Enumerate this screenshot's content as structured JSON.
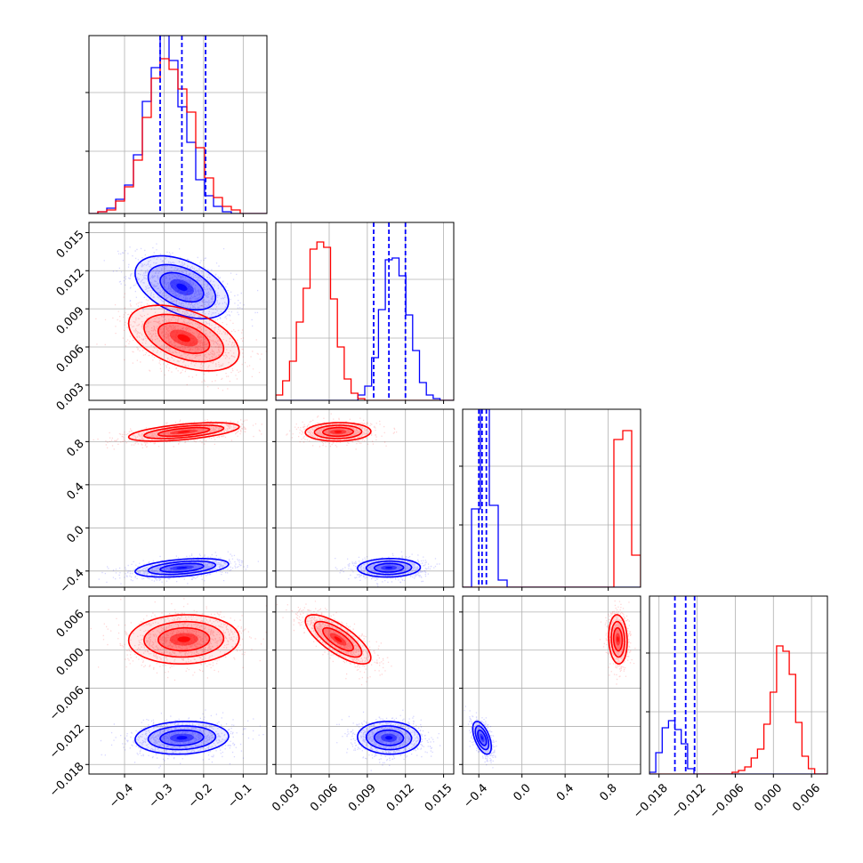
{
  "chart_data": {
    "type": "corner",
    "series": [
      {
        "name": "",
        "color": "#0000ff"
      },
      {
        "name": "",
        "color": "#ff0000"
      }
    ],
    "params": [
      {
        "range": [
          -0.49,
          -0.04
        ],
        "ticks": [
          -0.4,
          -0.3,
          -0.2,
          -0.1
        ],
        "tick_labels": [
          "−0.4",
          "−0.3",
          "−0.2",
          "−0.1"
        ]
      },
      {
        "range": [
          0.0018,
          0.0158
        ],
        "ticks": [
          0.003,
          0.006,
          0.009,
          0.012,
          0.015
        ],
        "tick_labels": [
          "0.003",
          "0.006",
          "0.009",
          "0.012",
          "0.015"
        ]
      },
      {
        "range": [
          -0.55,
          1.1
        ],
        "ticks": [
          -0.4,
          0.0,
          0.4,
          0.8
        ],
        "tick_labels": [
          "−0.4",
          "0.0",
          "0.4",
          "0.8"
        ]
      },
      {
        "range": [
          -0.0195,
          0.0085
        ],
        "ticks": [
          -0.018,
          -0.012,
          -0.006,
          0.0,
          0.006
        ],
        "tick_labels": [
          "−0.018",
          "−0.012",
          "−0.006",
          "0.000",
          "0.006"
        ]
      }
    ],
    "diag_hist": [
      {
        "bins": [
          -0.49,
          -0.04,
          20
        ],
        "blue": [
          0,
          1,
          3,
          8,
          16,
          33,
          63,
          82,
          100,
          86,
          60,
          40,
          19,
          10,
          4,
          1,
          0,
          0,
          0,
          0
        ],
        "red": [
          0,
          1,
          2,
          7,
          15,
          30,
          54,
          76,
          87,
          81,
          70,
          57,
          37,
          20,
          9,
          4,
          2,
          0,
          0,
          0
        ],
        "quantiles_blue": [
          -0.31,
          -0.255,
          -0.195
        ]
      },
      {
        "bins": [
          0.0018,
          0.0158,
          26
        ],
        "blue": [
          0,
          0,
          0,
          0,
          0,
          0,
          0,
          0,
          0,
          0,
          0,
          0,
          3,
          8,
          24,
          51,
          79,
          80,
          70,
          48,
          28,
          10,
          3,
          1,
          0,
          0
        ],
        "red": [
          3,
          11,
          22,
          44,
          63,
          85,
          89,
          86,
          57,
          30,
          12,
          4,
          1,
          0,
          0,
          0,
          0,
          0,
          0,
          0,
          0,
          0,
          0,
          0,
          0,
          0
        ],
        "quantiles_blue": [
          0.0095,
          0.0107,
          0.012
        ]
      },
      {
        "bins": [
          -0.55,
          1.1,
          20
        ],
        "blue": [
          0,
          44,
          100,
          46,
          4,
          0,
          0,
          0,
          0,
          0,
          0,
          0,
          0,
          0,
          0,
          0,
          0,
          0,
          0,
          0
        ],
        "red": [
          0,
          0,
          0,
          0,
          0,
          0,
          0,
          0,
          0,
          0,
          0,
          0,
          0,
          0,
          0,
          0,
          0,
          83,
          88,
          18
        ],
        "quantiles_blue": [
          -0.4,
          -0.37,
          -0.33
        ]
      },
      {
        "bins": [
          -0.0195,
          0.0085,
          28
        ],
        "blue": [
          1,
          12,
          26,
          30,
          25,
          17,
          3,
          0,
          0,
          0,
          0,
          0,
          0,
          0,
          0,
          0,
          0,
          0,
          0,
          0,
          0,
          0,
          0,
          0,
          0,
          0,
          0,
          0
        ],
        "red": [
          0,
          0,
          0,
          0,
          0,
          0,
          0,
          0,
          0,
          0,
          0,
          0,
          0,
          1,
          2,
          4,
          9,
          14,
          28,
          46,
          72,
          69,
          56,
          29,
          10,
          3,
          0,
          0
        ],
        "quantiles_blue": [
          -0.0155,
          -0.0138,
          -0.0124
        ]
      }
    ],
    "blobs": [
      {
        "name": "blue",
        "mean": [
          -0.255,
          0.0107,
          -0.37,
          -0.0138
        ],
        "std": [
          0.055,
          0.00115,
          0.04,
          0.0012
        ],
        "corr": [
          [
            1,
            -0.45,
            0.4,
            0.1
          ],
          [
            -0.45,
            1,
            0.05,
            -0.05
          ],
          [
            0.4,
            0.05,
            1,
            -0.55
          ],
          [
            0.1,
            -0.05,
            -0.55,
            1
          ]
        ]
      },
      {
        "name": "red",
        "mean": [
          -0.25,
          0.0067,
          0.89,
          0.0017
        ],
        "std": [
          0.065,
          0.0012,
          0.04,
          0.0018
        ],
        "corr": [
          [
            1,
            -0.45,
            0.55,
            0.05
          ],
          [
            -0.45,
            1,
            0.05,
            -0.75
          ],
          [
            0.55,
            0.05,
            1,
            -0.1
          ],
          [
            0.05,
            -0.75,
            -0.1,
            1
          ]
        ]
      }
    ],
    "grid": true
  }
}
